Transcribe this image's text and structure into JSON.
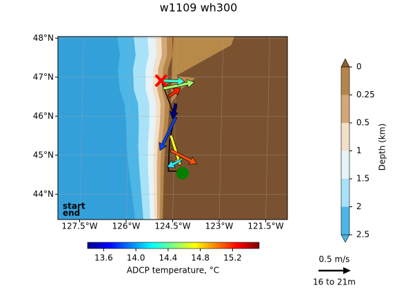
{
  "title": "w1109 wh300",
  "map": {
    "lonlim": [
      -128.2,
      -120.8
    ],
    "latlim": [
      43.35,
      48.04
    ],
    "lat_ticks": [
      {
        "value": 48,
        "label": "48°N"
      },
      {
        "value": 47,
        "label": "47°N"
      },
      {
        "value": 46,
        "label": "46°N"
      },
      {
        "value": 45,
        "label": "45°N"
      },
      {
        "value": 44,
        "label": "44°N"
      }
    ],
    "lon_ticks": [
      {
        "value": -127.5,
        "label": "127.5°W"
      },
      {
        "value": -126,
        "label": "126°W"
      },
      {
        "value": -124.5,
        "label": "124.5°W"
      },
      {
        "value": -123,
        "label": "123°W"
      },
      {
        "value": -121.5,
        "label": "121.5°W"
      }
    ],
    "track": {
      "lon": [
        -124.87,
        -124.51,
        -124.38,
        -124.6,
        -124.64,
        -124.11
      ],
      "lat": [
        46.91,
        46.15,
        46.23,
        45.35,
        44.59,
        44.59
      ]
    },
    "start": {
      "label": "start",
      "lon": -124.18,
      "lat": 44.54,
      "color": "#008000"
    },
    "end": {
      "label": "end",
      "lon": -124.87,
      "lat": 46.91,
      "color": "#ff0000"
    },
    "arrows": [
      {
        "lon": -124.8,
        "lat": 46.71,
        "dlon": 1.0,
        "dlat": 0.16,
        "color": "#a6ff6e"
      },
      {
        "lon": -124.8,
        "lat": 46.91,
        "dlon": 0.69,
        "dlat": -0.02,
        "color": "#40ffd0"
      },
      {
        "lon": -124.62,
        "lat": 46.5,
        "dlon": 0.38,
        "dlat": 0.23,
        "color": "#ff2000"
      },
      {
        "lon": -124.4,
        "lat": 46.32,
        "dlon": -0.11,
        "dlat": -0.39,
        "color": "#000080"
      },
      {
        "lon": -124.4,
        "lat": 45.97,
        "dlon": -0.51,
        "dlat": -0.85,
        "color": "#1040e0"
      },
      {
        "lon": -124.56,
        "lat": 45.51,
        "dlon": 0.31,
        "dlat": -0.78,
        "color": "#ffff20"
      },
      {
        "lon": -124.56,
        "lat": 45.12,
        "dlon": 0.84,
        "dlat": -0.34,
        "color": "#ff5010"
      },
      {
        "lon": -124.24,
        "lat": 44.87,
        "dlon": -0.44,
        "dlat": -0.18,
        "color": "#30e0f0"
      }
    ]
  },
  "depth_colorbar": {
    "label": "Depth (km)",
    "levels": [
      0,
      0.25,
      0.5,
      1,
      1.5,
      2,
      2.5
    ],
    "colors": [
      "#b5854a",
      "#d2a877",
      "#f3dfc8",
      "#e6f3f7",
      "#a8e2f8",
      "#4db6e6"
    ]
  },
  "temperature_colorbar": {
    "label": "ADCP temperature, °C",
    "lim": [
      13.4,
      15.53
    ],
    "ticks": [
      13.6,
      {
        "value": 14,
        "label": "14.0"
      },
      14.4,
      14.8,
      15.2
    ]
  },
  "scale": {
    "label": "0.5 m/s",
    "depth": "16 to 21m"
  }
}
